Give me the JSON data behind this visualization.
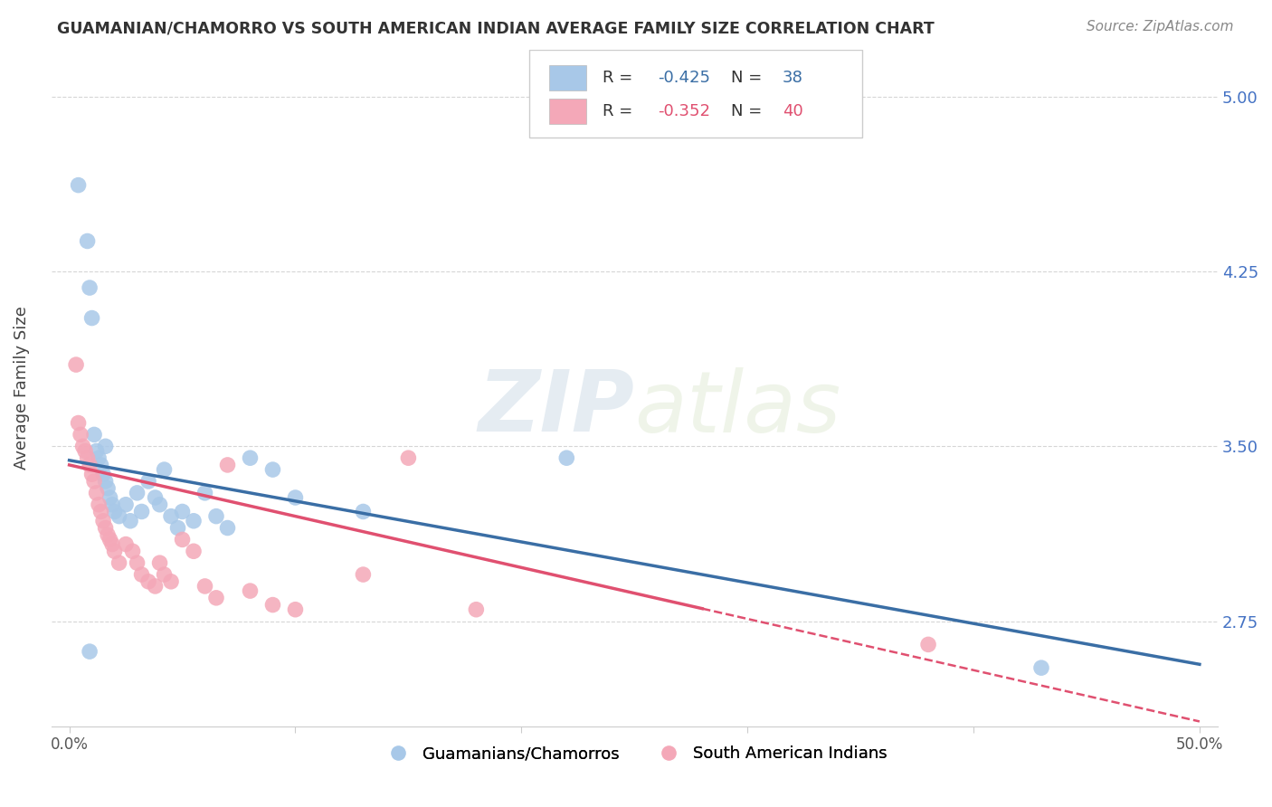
{
  "title": "GUAMANIAN/CHAMORRO VS SOUTH AMERICAN INDIAN AVERAGE FAMILY SIZE CORRELATION CHART",
  "source": "Source: ZipAtlas.com",
  "ylabel": "Average Family Size",
  "blue_color": "#A8C8E8",
  "pink_color": "#F4A8B8",
  "blue_line_color": "#3A6EA5",
  "pink_line_color": "#E05070",
  "legend_R_blue": "-0.425",
  "legend_N_blue": "38",
  "legend_R_pink": "-0.352",
  "legend_N_pink": "40",
  "legend_label_blue": "Guamanians/Chamorros",
  "legend_label_pink": "South American Indians",
  "watermark_zip": "ZIP",
  "watermark_atlas": "atlas",
  "background_color": "#ffffff",
  "grid_color": "#cccccc",
  "right_axis_color": "#4472c4",
  "blue_line_intercept": 3.44,
  "blue_line_slope": -1.75,
  "pink_line_intercept": 3.42,
  "pink_line_slope": -2.2,
  "blue_x": [
    0.004,
    0.008,
    0.009,
    0.01,
    0.011,
    0.012,
    0.013,
    0.014,
    0.015,
    0.016,
    0.016,
    0.017,
    0.018,
    0.019,
    0.02,
    0.022,
    0.025,
    0.027,
    0.03,
    0.032,
    0.035,
    0.038,
    0.04,
    0.042,
    0.045,
    0.048,
    0.05,
    0.055,
    0.06,
    0.065,
    0.07,
    0.08,
    0.09,
    0.1,
    0.13,
    0.22,
    0.43,
    0.009
  ],
  "blue_y": [
    4.62,
    4.38,
    4.18,
    4.05,
    3.55,
    3.48,
    3.45,
    3.42,
    3.38,
    3.35,
    3.5,
    3.32,
    3.28,
    3.25,
    3.22,
    3.2,
    3.25,
    3.18,
    3.3,
    3.22,
    3.35,
    3.28,
    3.25,
    3.4,
    3.2,
    3.15,
    3.22,
    3.18,
    3.3,
    3.2,
    3.15,
    3.45,
    3.4,
    3.28,
    3.22,
    3.45,
    2.55,
    2.62
  ],
  "pink_x": [
    0.003,
    0.004,
    0.005,
    0.006,
    0.007,
    0.008,
    0.009,
    0.01,
    0.011,
    0.012,
    0.013,
    0.014,
    0.015,
    0.016,
    0.017,
    0.018,
    0.019,
    0.02,
    0.022,
    0.025,
    0.028,
    0.03,
    0.032,
    0.035,
    0.038,
    0.04,
    0.042,
    0.045,
    0.05,
    0.055,
    0.06,
    0.065,
    0.07,
    0.08,
    0.09,
    0.1,
    0.13,
    0.15,
    0.18,
    0.38
  ],
  "pink_y": [
    3.85,
    3.6,
    3.55,
    3.5,
    3.48,
    3.45,
    3.42,
    3.38,
    3.35,
    3.3,
    3.25,
    3.22,
    3.18,
    3.15,
    3.12,
    3.1,
    3.08,
    3.05,
    3.0,
    3.08,
    3.05,
    3.0,
    2.95,
    2.92,
    2.9,
    3.0,
    2.95,
    2.92,
    3.1,
    3.05,
    2.9,
    2.85,
    3.42,
    2.88,
    2.82,
    2.8,
    2.95,
    3.45,
    2.8,
    2.65
  ]
}
